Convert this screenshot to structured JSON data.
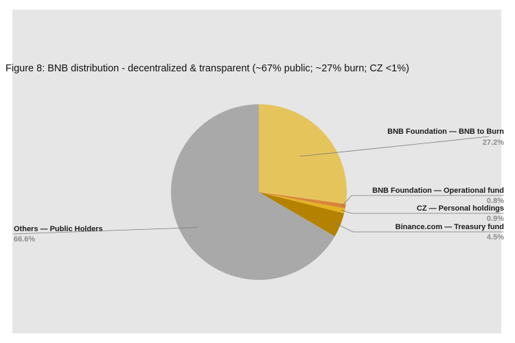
{
  "chart_data": {
    "type": "pie",
    "title": "Figure 8: BNB distribution - decentralized & transparent (~67% public; ~27% burn; CZ <1%)",
    "slices": [
      {
        "label": "BNB Foundation — BNB to Burn",
        "value": 27.2,
        "value_label": "27.2%",
        "color": "#e6c45c"
      },
      {
        "label": "BNB Foundation — Operational fund",
        "value": 0.8,
        "value_label": "0.8%",
        "color": "#d9833a"
      },
      {
        "label": "CZ — Personal holdings",
        "value": 0.9,
        "value_label": "0.9%",
        "color": "#e3b422"
      },
      {
        "label": "Binance.com — Treasury fund",
        "value": 4.5,
        "value_label": "4.5%",
        "color": "#b58200"
      },
      {
        "label": "Others — Public Holders",
        "value": 66.6,
        "value_label": "66.6%",
        "color": "#a9a9a9"
      }
    ],
    "start": "12 o'clock",
    "direction": "clockwise"
  }
}
